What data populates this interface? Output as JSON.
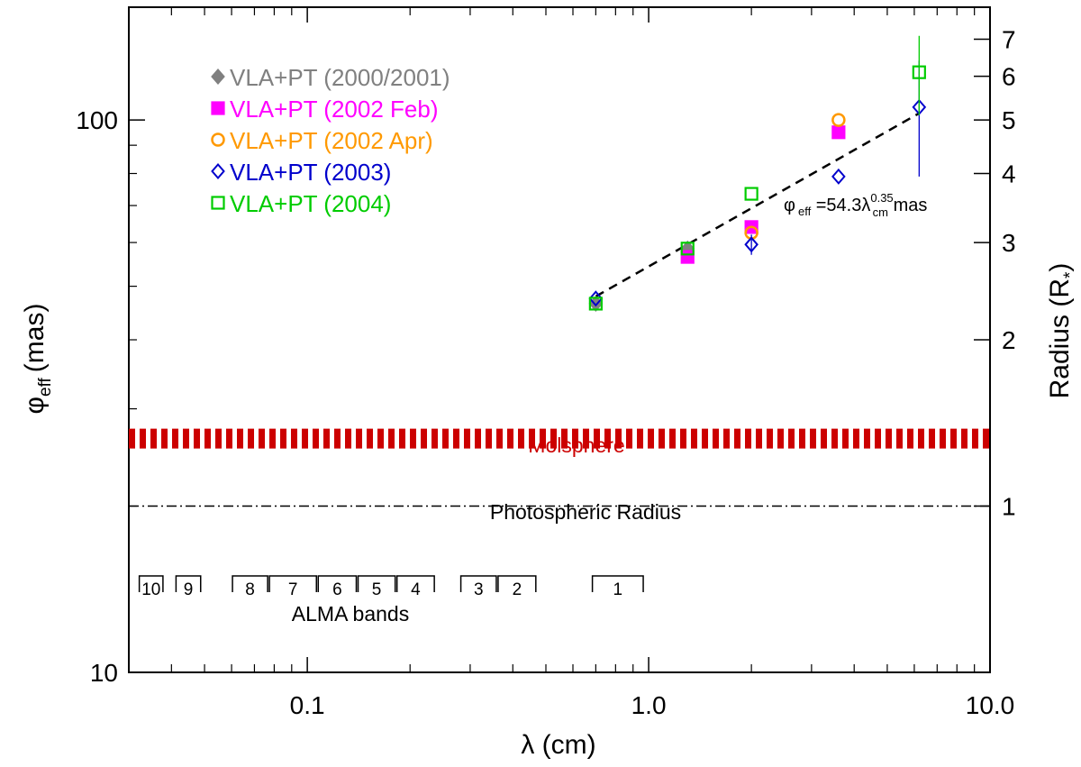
{
  "chart_data": {
    "type": "scatter",
    "xscale": "log",
    "yscale": "log",
    "xlim": [
      0.03,
      10.0
    ],
    "ylim": [
      10,
      160
    ],
    "xlabel": "λ (cm)",
    "ylabel": {
      "main": "φ",
      "sub": "eff",
      "unit": "(mas)"
    },
    "y2label": {
      "main": "Radius (R",
      "sub": "*",
      "close": ")"
    },
    "xticks": [
      {
        "value": 0.1,
        "label": "0.1"
      },
      {
        "value": 1.0,
        "label": "1.0"
      },
      {
        "value": 10.0,
        "label": "10.0"
      }
    ],
    "yticks": [
      {
        "value": 10,
        "label": "10"
      },
      {
        "value": 100,
        "label": "100"
      }
    ],
    "y2ticks": [
      {
        "value": 1,
        "label": "1"
      },
      {
        "value": 2,
        "label": "2"
      },
      {
        "value": 3,
        "label": "3"
      },
      {
        "value": 4,
        "label": "4"
      },
      {
        "value": 5,
        "label": "5"
      },
      {
        "value": 6,
        "label": "6"
      },
      {
        "value": 7,
        "label": "7"
      }
    ],
    "photosphere_mas": 20.0,
    "series": [
      {
        "name": "VLA+PT (2000/2001)",
        "legend": "VLA+PT (2000/2001)",
        "color": "#808080",
        "marker": "diamond-filled",
        "points": [
          {
            "x": 0.7,
            "y": 46.5
          },
          {
            "x": 1.3,
            "y": 58.5
          }
        ]
      },
      {
        "name": "VLA+PT (2002 Feb)",
        "legend": "VLA+PT (2002 Feb)",
        "color": "#ff00ff",
        "marker": "square-filled",
        "points": [
          {
            "x": 1.3,
            "y": 56.5
          },
          {
            "x": 2.0,
            "y": 64.0
          },
          {
            "x": 3.6,
            "y": 95.0
          }
        ]
      },
      {
        "name": "VLA+PT (2002 Apr)",
        "legend": "VLA+PT (2002 Apr)",
        "color": "#ff9900",
        "marker": "circle-open",
        "points": [
          {
            "x": 2.0,
            "y": 62.5
          },
          {
            "x": 3.6,
            "y": 100.0
          }
        ]
      },
      {
        "name": "VLA+PT (2003)",
        "legend": "VLA+PT (2003)",
        "color": "#0000cc",
        "marker": "diamond-open",
        "points": [
          {
            "x": 0.7,
            "y": 47.5
          },
          {
            "x": 2.0,
            "y": 59.5,
            "err": [
              57.0,
              62.0
            ]
          },
          {
            "x": 3.6,
            "y": 79.0
          },
          {
            "x": 6.2,
            "y": 105.5,
            "err": [
              79.0,
              128.0
            ]
          }
        ]
      },
      {
        "name": "VLA+PT (2004)",
        "legend": "VLA+PT (2004)",
        "color": "#00cc00",
        "marker": "square-open",
        "points": [
          {
            "x": 0.7,
            "y": 46.5
          },
          {
            "x": 1.3,
            "y": 58.5
          },
          {
            "x": 2.0,
            "y": 73.5
          },
          {
            "x": 6.2,
            "y": 122.0,
            "err": [
              102.0,
              142.0
            ]
          }
        ]
      }
    ],
    "fit": {
      "coef": 54.3,
      "exp": 0.35,
      "xmin": 0.7,
      "xmax": 6.2,
      "label_main": "φ",
      "label_sub": "eff",
      "label_mid": " =54.3λ",
      "label_sup": "0.35",
      "label_sub2": "cm",
      "label_end": " mas"
    },
    "molsphere": {
      "label": "Molsphere",
      "color": "#cc0000",
      "y_value": 26.5
    },
    "photosphere_label": "Photospheric Radius",
    "alma": {
      "label": "ALMA bands",
      "bands": [
        {
          "name": "10",
          "range": [
            0.032,
            0.038
          ]
        },
        {
          "name": "9",
          "range": [
            0.041,
            0.049
          ]
        },
        {
          "name": "8",
          "range": [
            0.06,
            0.077
          ]
        },
        {
          "name": "7",
          "range": [
            0.077,
            0.107
          ]
        },
        {
          "name": "6",
          "range": [
            0.107,
            0.14
          ]
        },
        {
          "name": "5",
          "range": [
            0.14,
            0.182
          ]
        },
        {
          "name": "4",
          "range": [
            0.182,
            0.237
          ]
        },
        {
          "name": "3",
          "range": [
            0.28,
            0.36
          ]
        },
        {
          "name": "2",
          "range": [
            0.36,
            0.47
          ]
        },
        {
          "name": "1",
          "range": [
            0.68,
            0.97
          ]
        }
      ]
    }
  }
}
